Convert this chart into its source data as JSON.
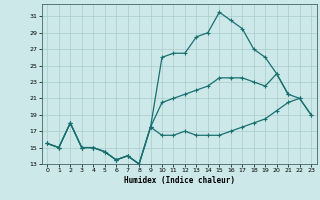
{
  "xlabel": "Humidex (Indice chaleur)",
  "background_color": "#cce8e8",
  "grid_color": "#aacccc",
  "line_color": "#1a7070",
  "xlim": [
    -0.5,
    23.5
  ],
  "ylim": [
    13,
    32.5
  ],
  "yticks": [
    13,
    15,
    17,
    19,
    21,
    23,
    25,
    27,
    29,
    31
  ],
  "xticks": [
    0,
    1,
    2,
    3,
    4,
    5,
    6,
    7,
    8,
    9,
    10,
    11,
    12,
    13,
    14,
    15,
    16,
    17,
    18,
    19,
    20,
    21,
    22,
    23
  ],
  "x_top": [
    0,
    1,
    2,
    3,
    4,
    5,
    6,
    7,
    8,
    9,
    10,
    11,
    12,
    13,
    14,
    15,
    16,
    17,
    18,
    19,
    20,
    21
  ],
  "y_top": [
    15.5,
    15.0,
    18.0,
    15.0,
    15.0,
    14.5,
    13.5,
    14.0,
    13.0,
    17.5,
    26.0,
    26.5,
    26.5,
    28.5,
    29.0,
    31.5,
    30.5,
    29.5,
    27.0,
    26.0,
    24.0,
    21.5
  ],
  "x_mid": [
    0,
    1,
    2,
    3,
    4,
    5,
    6,
    7,
    8,
    9,
    10,
    11,
    12,
    13,
    14,
    15,
    16,
    17,
    18,
    19,
    20,
    21,
    22,
    23
  ],
  "y_mid": [
    15.5,
    15.0,
    18.0,
    15.0,
    15.0,
    14.5,
    13.5,
    14.0,
    13.0,
    17.5,
    20.5,
    21.0,
    21.5,
    22.0,
    22.5,
    23.5,
    23.5,
    23.5,
    23.0,
    22.5,
    24.0,
    21.5,
    21.0,
    19.0
  ],
  "x_bot": [
    0,
    1,
    2,
    3,
    4,
    5,
    6,
    7,
    8,
    9,
    10,
    11,
    12,
    13,
    14,
    15,
    16,
    17,
    18,
    19,
    20,
    21,
    22,
    23
  ],
  "y_bot": [
    15.5,
    15.0,
    18.0,
    15.0,
    15.0,
    14.5,
    13.5,
    14.0,
    13.0,
    17.5,
    16.5,
    16.5,
    17.0,
    16.5,
    16.5,
    16.5,
    17.0,
    17.5,
    18.0,
    18.5,
    19.5,
    20.5,
    21.0,
    19.0
  ]
}
